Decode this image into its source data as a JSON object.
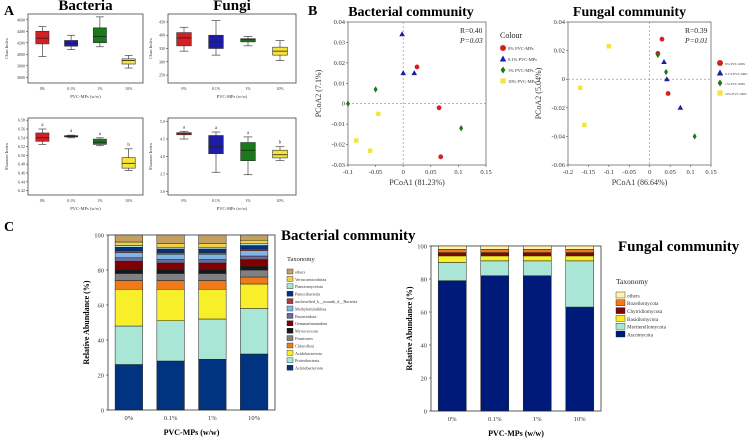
{
  "panel_labels": {
    "a": "A",
    "b": "B",
    "c": "C"
  },
  "colors": {
    "p0": "#d42024",
    "p01": "#1c1ca8",
    "p1": "#1a7a1a",
    "p10": "#f6e33a",
    "tax": [
      "#003380",
      "#a9e6d6",
      "#f8ef2a",
      "#f07a1a",
      "#808080",
      "#101820",
      "#800000",
      "#6a6a9a",
      "#7fb6e6",
      "#a04040",
      "#003388",
      "#b0e0d8",
      "#f4d04a",
      "#c3a060",
      "#fff5a8"
    ],
    "ftax": [
      "#001a7a",
      "#a9e6d6",
      "#f8ef2a",
      "#7a0a0a",
      "#f07a1a",
      "#fff3b0"
    ]
  },
  "chart_data": [
    {
      "id": "bact_chao",
      "type": "box",
      "title": "Bacteria",
      "ylabel": "Chao Index",
      "xlabel": "PVC-MPs (w/w)",
      "categories": [
        "0%",
        "0.1%",
        "1%",
        "10%"
      ],
      "yticks": [
        "3600",
        "3800",
        "4000",
        "4200",
        "4400",
        "4600"
      ],
      "ylim": [
        3500,
        4700
      ],
      "boxes": [
        {
          "min": 3960,
          "q1": 4180,
          "median": 4280,
          "q3": 4400,
          "max": 4480
        },
        {
          "min": 4080,
          "q1": 4140,
          "median": 4190,
          "q3": 4240,
          "max": 4330
        },
        {
          "min": 4130,
          "q1": 4200,
          "median": 4310,
          "q3": 4460,
          "max": 4650
        },
        {
          "min": 3760,
          "q1": 3830,
          "median": 3890,
          "q3": 3920,
          "max": 3980
        }
      ]
    },
    {
      "id": "fung_chao",
      "type": "box",
      "title": "Fungi",
      "ylabel": "Chao Index",
      "xlabel": "PVC-MPs (w/w)",
      "categories": [
        "0%",
        "0.1%",
        "1%",
        "10%"
      ],
      "yticks": [
        "250",
        "300",
        "350",
        "400",
        "450"
      ],
      "ylim": [
        220,
        480
      ],
      "boxes": [
        {
          "min": 340,
          "q1": 360,
          "median": 390,
          "q3": 410,
          "max": 430
        },
        {
          "min": 325,
          "q1": 350,
          "median": 375,
          "q3": 400,
          "max": 455
        },
        {
          "min": 360,
          "q1": 375,
          "median": 383,
          "q3": 387,
          "max": 395
        },
        {
          "min": 305,
          "q1": 325,
          "median": 340,
          "q3": 355,
          "max": 380
        }
      ]
    },
    {
      "id": "bact_shannon",
      "type": "box",
      "ylabel": "Shannon Index",
      "xlabel": "PVC-MPs (w/w)",
      "categories": [
        "0%",
        "0.1%",
        "1%",
        "10%"
      ],
      "yticks": [
        "6.42",
        "6.44",
        "6.46",
        "6.48",
        "6.50",
        "6.52",
        "6.54",
        "6.56",
        "6.58"
      ],
      "ylim": [
        6.41,
        6.585
      ],
      "letters": [
        "a",
        "a",
        "a",
        "b"
      ],
      "boxes": [
        {
          "min": 6.525,
          "q1": 6.532,
          "median": 6.54,
          "q3": 6.551,
          "max": 6.56
        },
        {
          "min": 6.54,
          "q1": 6.542,
          "median": 6.543,
          "q3": 6.545,
          "max": 6.546
        },
        {
          "min": 6.522,
          "q1": 6.525,
          "median": 6.53,
          "q3": 6.537,
          "max": 6.54
        },
        {
          "min": 6.466,
          "q1": 6.471,
          "median": 6.482,
          "q3": 6.495,
          "max": 6.515
        }
      ]
    },
    {
      "id": "fung_shannon",
      "type": "box",
      "ylabel": "Shannon Index",
      "xlabel": "PVC-MPs (w/w)",
      "categories": [
        "0%",
        "0.1%",
        "1%",
        "10%"
      ],
      "yticks": [
        "3.0",
        "3.5",
        "4.0",
        "4.5",
        "5.0"
      ],
      "ylim": [
        2.9,
        5.1
      ],
      "letters": [
        "a",
        "a",
        "a",
        "b"
      ],
      "boxes": [
        {
          "min": 4.5,
          "q1": 4.62,
          "median": 4.65,
          "q3": 4.68,
          "max": 4.72
        },
        {
          "min": 3.55,
          "q1": 4.08,
          "median": 4.28,
          "q3": 4.6,
          "max": 4.7
        },
        {
          "min": 3.48,
          "q1": 3.88,
          "median": 4.18,
          "q3": 4.4,
          "max": 4.56
        },
        {
          "min": 3.88,
          "q1": 3.96,
          "median": 4.05,
          "q3": 4.18,
          "max": 4.28
        }
      ]
    },
    {
      "id": "bact_pcoa",
      "type": "scatter",
      "title": "Bacterial community",
      "xlabel": "PCoA1 (81.23%)",
      "ylabel": "PCoA2 (7.1%)",
      "xlim": [
        -0.1,
        0.15
      ],
      "ylim": [
        -0.03,
        0.04
      ],
      "xticks": [
        "-0.1",
        "-0.05",
        "0",
        "0.05",
        "0.1",
        "0.15"
      ],
      "yticks": [
        "-0.03",
        "-0.02",
        "-0.01",
        "0",
        "0.01",
        "0.02",
        "0.03",
        "0.04"
      ],
      "stats": [
        "R=0.40",
        "P=0.03"
      ],
      "legend_title": "Colour",
      "legend": [
        "0% PVC-MPs",
        "0.1% PVC-MPs",
        "1% PVC-MPs",
        "10% PVC-MPs"
      ],
      "points": [
        {
          "g": 0,
          "x": 0.025,
          "y": 0.018
        },
        {
          "g": 0,
          "x": 0.065,
          "y": -0.002
        },
        {
          "g": 0,
          "x": 0.068,
          "y": -0.026
        },
        {
          "g": 1,
          "x": -0.002,
          "y": 0.034
        },
        {
          "g": 1,
          "x": 0.0,
          "y": 0.015
        },
        {
          "g": 1,
          "x": 0.02,
          "y": 0.015
        },
        {
          "g": 2,
          "x": -0.1,
          "y": 0.0
        },
        {
          "g": 2,
          "x": -0.05,
          "y": 0.007
        },
        {
          "g": 2,
          "x": 0.105,
          "y": -0.012
        },
        {
          "g": 3,
          "x": -0.085,
          "y": -0.018
        },
        {
          "g": 3,
          "x": -0.06,
          "y": -0.023
        },
        {
          "g": 3,
          "x": -0.045,
          "y": -0.005
        }
      ]
    },
    {
      "id": "fung_pcoa",
      "type": "scatter",
      "title": "Fungal community",
      "xlabel": "PCoA1 (86.64%)",
      "ylabel": "PCoA2 (5.04%)",
      "xlim": [
        -0.2,
        0.15
      ],
      "ylim": [
        -0.06,
        0.04
      ],
      "xticks": [
        "-0.2",
        "-0.15",
        "-0.1",
        "-0.05",
        "0",
        "0.05",
        "0.1",
        "0.15"
      ],
      "yticks": [
        "-0.06",
        "-0.04",
        "-0.02",
        "0",
        "0.02",
        "0.04"
      ],
      "stats": [
        "R=0.39",
        "P=0.01"
      ],
      "legend_title": "Colour",
      "legend": [
        "0% PVC-MPs",
        "0.1% PVC-MPs",
        "1% PVC-MPs",
        "10% PVC-MPs"
      ],
      "points": [
        {
          "g": 0,
          "x": 0.03,
          "y": 0.028
        },
        {
          "g": 0,
          "x": 0.02,
          "y": 0.018
        },
        {
          "g": 0,
          "x": 0.045,
          "y": -0.01
        },
        {
          "g": 1,
          "x": 0.035,
          "y": 0.012
        },
        {
          "g": 1,
          "x": 0.042,
          "y": 0.0
        },
        {
          "g": 1,
          "x": 0.075,
          "y": -0.02
        },
        {
          "g": 2,
          "x": 0.02,
          "y": 0.017
        },
        {
          "g": 2,
          "x": 0.04,
          "y": 0.005
        },
        {
          "g": 2,
          "x": 0.11,
          "y": -0.04
        },
        {
          "g": 3,
          "x": -0.1,
          "y": 0.023
        },
        {
          "g": 3,
          "x": -0.17,
          "y": -0.006
        },
        {
          "g": 3,
          "x": -0.16,
          "y": -0.032
        }
      ]
    },
    {
      "id": "bact_stack",
      "type": "stacked_bar",
      "title": "Bacterial community",
      "xlabel": "PVC-MPs (w/w)",
      "ylabel": "Relative Abundance (%)",
      "categories": [
        "0%",
        "0.1%",
        "1%",
        "10%"
      ],
      "yticks": [
        "0",
        "20",
        "40",
        "60",
        "80",
        "100"
      ],
      "ylim": [
        0,
        100
      ],
      "legend_title": "Taxonomy",
      "series": [
        {
          "name": "Actinobacteriota",
          "values": [
            26,
            28,
            29,
            32
          ]
        },
        {
          "name": "Proteobacteria",
          "values": [
            22,
            23,
            23,
            26
          ]
        },
        {
          "name": "Acidobacteriota",
          "values": [
            21,
            18,
            17,
            14
          ]
        },
        {
          "name": "Chloroflexi",
          "values": [
            5,
            5,
            5,
            4
          ]
        },
        {
          "name": "Firmicutes",
          "values": [
            4,
            4,
            4,
            4
          ]
        },
        {
          "name": "Myxococcota",
          "values": [
            2,
            2,
            2,
            2
          ]
        },
        {
          "name": "Gemmatimonadota",
          "values": [
            5,
            4,
            4,
            4
          ]
        },
        {
          "name": "Bacteroidota",
          "values": [
            2,
            2,
            2,
            2
          ]
        },
        {
          "name": "Methylomirabilota",
          "values": [
            3,
            3,
            3,
            3
          ]
        },
        {
          "name": "unclassified_k__norank_d__Bacteria",
          "values": [
            1,
            1,
            1,
            1
          ]
        },
        {
          "name": "Patescibacteria",
          "values": [
            2,
            2,
            2,
            2
          ]
        },
        {
          "name": "Planctomycetota",
          "values": [
            1,
            1,
            1,
            1
          ]
        },
        {
          "name": "Verrucomicrobiota",
          "values": [
            2,
            2,
            2,
            2
          ]
        },
        {
          "name": "others",
          "values": [
            4,
            5,
            5,
            3
          ]
        }
      ]
    },
    {
      "id": "fung_stack",
      "type": "stacked_bar",
      "title": "Fungal community",
      "xlabel": "PVC-MPs (w/w)",
      "ylabel": "Relative Abundance (%)",
      "categories": [
        "0%",
        "0.1%",
        "1%",
        "10%"
      ],
      "yticks": [
        "0",
        "20",
        "40",
        "60",
        "80",
        "100"
      ],
      "ylim": [
        0,
        100
      ],
      "legend_title": "Taxonomy",
      "series": [
        {
          "name": "Ascomycota",
          "values": [
            79,
            82,
            82,
            63
          ]
        },
        {
          "name": "Mortierellomycota",
          "values": [
            11,
            9,
            9,
            28
          ]
        },
        {
          "name": "Basidiomycota",
          "values": [
            4,
            3,
            3,
            3
          ]
        },
        {
          "name": "Chytridiomycota",
          "values": [
            2,
            2,
            2,
            2
          ]
        },
        {
          "name": "Rozellomycota",
          "values": [
            2,
            2,
            2,
            2
          ]
        },
        {
          "name": "others",
          "values": [
            2,
            2,
            2,
            2
          ]
        }
      ]
    }
  ]
}
